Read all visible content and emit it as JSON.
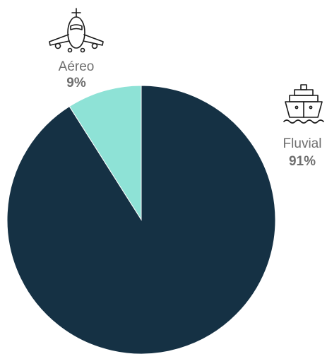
{
  "chart_data": {
    "type": "pie",
    "slices": [
      {
        "label": "Aéreo",
        "value": 9,
        "value_label": "9%",
        "color": "#8ee2d6",
        "icon": "airplane-icon"
      },
      {
        "label": "Fluvial",
        "value": 91,
        "value_label": "91%",
        "color": "#153144",
        "icon": "ship-icon"
      }
    ],
    "title": "",
    "start_angle_deg": 0,
    "direction": "counterclockwise",
    "legend": "none"
  }
}
